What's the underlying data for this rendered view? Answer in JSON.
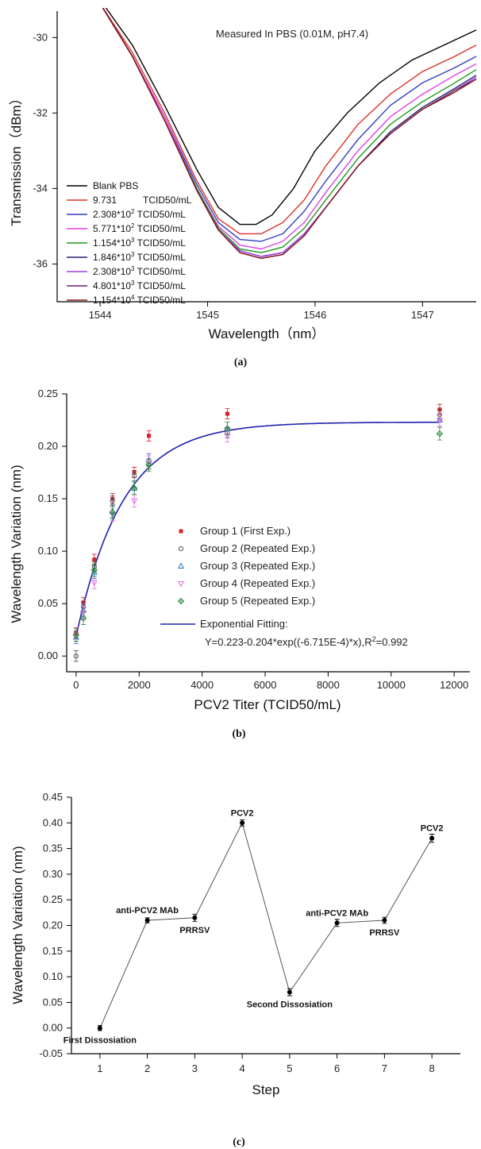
{
  "chart_data": [
    {
      "type": "line",
      "subfigure_label": "(a)",
      "title": "Measured In PBS (0.01M, pH7.4)",
      "xlabel": "Wavelength（nm）",
      "ylabel": "Transmission（dBm）",
      "xlim": [
        1543.6,
        1547.5
      ],
      "ylim": [
        -37,
        -29.3
      ],
      "x_ticks": [
        "1544",
        "1545",
        "1546",
        "1547"
      ],
      "y_ticks": [
        "-30",
        "-32",
        "-34",
        "-36"
      ],
      "legend_position": "bottom-left",
      "series": [
        {
          "name": "Blank PBS",
          "color": "#000000",
          "x": [
            1543.7,
            1544.0,
            1544.3,
            1544.6,
            1544.9,
            1545.1,
            1545.3,
            1545.45,
            1545.6,
            1545.8,
            1546.0,
            1546.3,
            1546.6,
            1546.9,
            1547.2,
            1547.5
          ],
          "y": [
            -28.6,
            -29.0,
            -30.2,
            -31.8,
            -33.5,
            -34.5,
            -34.95,
            -34.95,
            -34.7,
            -34.0,
            -33.0,
            -32.0,
            -31.2,
            -30.6,
            -30.2,
            -29.8
          ]
        },
        {
          "name": "9.731 TCID50/mL",
          "color": "#e0302a",
          "x": [
            1543.7,
            1544.0,
            1544.3,
            1544.6,
            1544.9,
            1545.1,
            1545.3,
            1545.5,
            1545.7,
            1545.9,
            1546.1,
            1546.4,
            1546.7,
            1547.0,
            1547.3,
            1547.5
          ],
          "y": [
            -28.6,
            -29.1,
            -30.4,
            -32.0,
            -33.8,
            -34.8,
            -35.2,
            -35.2,
            -34.9,
            -34.3,
            -33.4,
            -32.3,
            -31.5,
            -30.9,
            -30.5,
            -30.2
          ]
        },
        {
          "name": "2.308*10^2 TCID50/mL",
          "color": "#2f3fbf",
          "x": [
            1543.7,
            1544.0,
            1544.3,
            1544.6,
            1544.9,
            1545.1,
            1545.3,
            1545.5,
            1545.7,
            1545.9,
            1546.1,
            1546.4,
            1546.7,
            1547.0,
            1547.3,
            1547.5
          ],
          "y": [
            -28.6,
            -29.1,
            -30.5,
            -32.1,
            -33.9,
            -34.9,
            -35.35,
            -35.4,
            -35.2,
            -34.6,
            -33.8,
            -32.7,
            -31.8,
            -31.2,
            -30.8,
            -30.5
          ]
        },
        {
          "name": "5.771*10^2 TCID50/mL",
          "color": "#e040e8",
          "x": [
            1543.7,
            1544.0,
            1544.3,
            1544.6,
            1544.9,
            1545.1,
            1545.3,
            1545.5,
            1545.7,
            1545.9,
            1546.1,
            1546.4,
            1546.7,
            1547.0,
            1547.3,
            1547.5
          ],
          "y": [
            -28.6,
            -29.1,
            -30.5,
            -32.1,
            -34.0,
            -35.0,
            -35.5,
            -35.6,
            -35.4,
            -34.9,
            -34.1,
            -33.0,
            -32.1,
            -31.5,
            -31.0,
            -30.7
          ]
        },
        {
          "name": "1.154*10^3 TCID50/mL",
          "color": "#1f9a1f",
          "x": [
            1543.7,
            1544.0,
            1544.3,
            1544.6,
            1544.9,
            1545.1,
            1545.3,
            1545.5,
            1545.7,
            1545.9,
            1546.1,
            1546.4,
            1546.7,
            1547.0,
            1547.3,
            1547.5
          ],
          "y": [
            -28.6,
            -29.1,
            -30.5,
            -32.2,
            -34.0,
            -35.05,
            -35.6,
            -35.7,
            -35.55,
            -35.05,
            -34.3,
            -33.2,
            -32.3,
            -31.7,
            -31.2,
            -30.85
          ]
        },
        {
          "name": "1.846*10^3 TCID50/mL",
          "color": "#22226f",
          "x": [
            1543.7,
            1544.0,
            1544.3,
            1544.6,
            1544.9,
            1545.1,
            1545.3,
            1545.5,
            1545.7,
            1545.9,
            1546.1,
            1546.4,
            1546.7,
            1547.0,
            1547.3,
            1547.5
          ],
          "y": [
            -28.6,
            -29.1,
            -30.5,
            -32.2,
            -34.05,
            -35.1,
            -35.65,
            -35.8,
            -35.7,
            -35.2,
            -34.5,
            -33.4,
            -32.5,
            -31.85,
            -31.35,
            -31.0
          ]
        },
        {
          "name": "2.308*10^3 TCID50/mL",
          "color": "#9b40e8",
          "x": [
            1543.7,
            1544.0,
            1544.3,
            1544.6,
            1544.9,
            1545.1,
            1545.3,
            1545.5,
            1545.7,
            1545.9,
            1546.1,
            1546.4,
            1546.7,
            1547.0,
            1547.3,
            1547.5
          ],
          "y": [
            -28.6,
            -29.1,
            -30.5,
            -32.2,
            -34.05,
            -35.1,
            -35.65,
            -35.8,
            -35.7,
            -35.2,
            -34.5,
            -33.4,
            -32.55,
            -31.9,
            -31.4,
            -31.05
          ]
        },
        {
          "name": "4.801*10^3 TCID50/mL",
          "color": "#6b1f6b",
          "x": [
            1543.7,
            1544.0,
            1544.3,
            1544.6,
            1544.9,
            1545.1,
            1545.3,
            1545.5,
            1545.7,
            1545.9,
            1546.1,
            1546.4,
            1546.7,
            1547.0,
            1547.3,
            1547.5
          ],
          "y": [
            -28.6,
            -29.1,
            -30.5,
            -32.2,
            -34.05,
            -35.1,
            -35.7,
            -35.85,
            -35.75,
            -35.25,
            -34.5,
            -33.4,
            -32.55,
            -31.9,
            -31.4,
            -31.1
          ]
        },
        {
          "name": "1.154*10^4 TCID50/mL",
          "color": "#8a1a1a",
          "x": [
            1543.7,
            1544.0,
            1544.3,
            1544.6,
            1544.9,
            1545.1,
            1545.3,
            1545.5,
            1545.7,
            1545.9,
            1546.1,
            1546.4,
            1546.7,
            1547.0,
            1547.3,
            1547.5
          ],
          "y": [
            -28.6,
            -29.1,
            -30.5,
            -32.2,
            -34.05,
            -35.1,
            -35.7,
            -35.85,
            -35.75,
            -35.25,
            -34.5,
            -33.4,
            -32.55,
            -31.9,
            -31.45,
            -31.1
          ]
        }
      ],
      "legend_entries": [
        {
          "value": "Blank PBS",
          "color": "#000000"
        },
        {
          "value": "9.731",
          "pad": true,
          "exp": "",
          "unit": "TCID50/mL",
          "color": "#e0302a"
        },
        {
          "value": "2.308*10",
          "exp": "2",
          "unit": "TCID50/mL",
          "color": "#2f3fbf"
        },
        {
          "value": "5.771*10",
          "exp": "2",
          "unit": "TCID50/mL",
          "color": "#e040e8"
        },
        {
          "value": "1.154*10",
          "exp": "3",
          "unit": "TCID50/mL",
          "color": "#1f9a1f"
        },
        {
          "value": "1.846*10",
          "exp": "3",
          "unit": "TCID50/mL",
          "color": "#22226f"
        },
        {
          "value": "2.308*10",
          "exp": "3",
          "unit": "TCID50/mL",
          "color": "#9b40e8"
        },
        {
          "value": "4.801*10",
          "exp": "3",
          "unit": "TCID50/mL",
          "color": "#6b1f6b"
        },
        {
          "value": "1.154*10",
          "exp": "4",
          "unit": "TCID50/mL",
          "color": "#8a1a1a"
        }
      ]
    },
    {
      "type": "scatter",
      "subfigure_label": "(b)",
      "xlabel": "PCV2 Titer (TCID50/mL)",
      "ylabel": "Wavelength Variation (nm)",
      "xlim": [
        -300,
        12500
      ],
      "ylim": [
        -0.015,
        0.25
      ],
      "x_ticks": [
        "0",
        "2000",
        "4000",
        "6000",
        "8000",
        "10000",
        "12000"
      ],
      "y_ticks": [
        "0.00",
        "0.05",
        "0.10",
        "0.15",
        "0.20",
        "0.25"
      ],
      "legend_position": "center",
      "x": [
        0,
        231,
        577,
        1154,
        1846,
        2308,
        4801,
        11540
      ],
      "series": [
        {
          "name": "Group 1 (First Exp.)",
          "marker": "square",
          "color": "#d81f2a",
          "y": [
            0.022,
            0.051,
            0.092,
            0.15,
            0.175,
            0.21,
            0.231,
            0.235
          ],
          "err": 0.005
        },
        {
          "name": "Group 2 (Repeated Exp.)",
          "marker": "circle",
          "color": "#555555",
          "y": [
            0.0,
            0.047,
            0.085,
            0.148,
            0.172,
            0.183,
            0.213,
            0.23
          ],
          "err": 0.005
        },
        {
          "name": "Group 3 (Repeated Exp.)",
          "marker": "triangle",
          "color": "#2f6fbf",
          "y": [
            0.018,
            0.044,
            0.08,
            0.138,
            0.16,
            0.187,
            0.217,
            0.225
          ],
          "err": 0.006
        },
        {
          "name": "Group 4 (Repeated Exp.)",
          "marker": "triangle-down",
          "color": "#e070e8",
          "y": [
            0.02,
            0.041,
            0.07,
            0.135,
            0.148,
            0.185,
            0.21,
            0.225
          ],
          "err": 0.006
        },
        {
          "name": "Group 5 (Repeated Exp.)",
          "marker": "diamond-plus",
          "color": "#2f8f3f",
          "y": [
            0.02,
            0.036,
            0.082,
            0.137,
            0.16,
            0.182,
            0.217,
            0.212
          ],
          "err": 0.006
        }
      ],
      "fit": {
        "name": "Exponential Fitting:",
        "equation": "Y=0.223-0.204*exp((-6.715E-4)*x),R",
        "r2_value": "=0.992",
        "color": "#2020b0",
        "a": 0.223,
        "b": 0.204,
        "k": -0.0006715
      }
    },
    {
      "type": "line",
      "subfigure_label": "(c)",
      "xlabel": "Step",
      "ylabel": "Wavelength Variation (nm)",
      "xlim": [
        0.4,
        8.6
      ],
      "ylim": [
        -0.05,
        0.45
      ],
      "x_ticks": [
        "1",
        "2",
        "3",
        "4",
        "5",
        "6",
        "7",
        "8"
      ],
      "y_ticks": [
        "-0.05",
        "0.00",
        "0.05",
        "0.10",
        "0.15",
        "0.20",
        "0.25",
        "0.30",
        "0.35",
        "0.40",
        "0.45"
      ],
      "x": [
        1,
        2,
        3,
        4,
        5,
        6,
        7,
        8
      ],
      "y": [
        0.0,
        0.21,
        0.215,
        0.4,
        0.07,
        0.205,
        0.21,
        0.37
      ],
      "err": [
        0.005,
        0.005,
        0.007,
        0.006,
        0.007,
        0.007,
        0.006,
        0.008
      ],
      "annotations": [
        {
          "text": "First Dissosiation",
          "x": 1,
          "y": 0.0,
          "pos": "below"
        },
        {
          "text": "anti-PCV2 MAb",
          "x": 2,
          "y": 0.21,
          "pos": "above"
        },
        {
          "text": "PRRSV",
          "x": 3,
          "y": 0.215,
          "pos": "below"
        },
        {
          "text": "PCV2",
          "x": 4,
          "y": 0.4,
          "pos": "above"
        },
        {
          "text": "Second Dissosiation",
          "x": 5,
          "y": 0.07,
          "pos": "below"
        },
        {
          "text": "anti-PCV2 MAb",
          "x": 6,
          "y": 0.205,
          "pos": "above"
        },
        {
          "text": "PRRSV",
          "x": 7,
          "y": 0.21,
          "pos": "below"
        },
        {
          "text": "PCV2",
          "x": 8,
          "y": 0.37,
          "pos": "above"
        }
      ]
    }
  ]
}
